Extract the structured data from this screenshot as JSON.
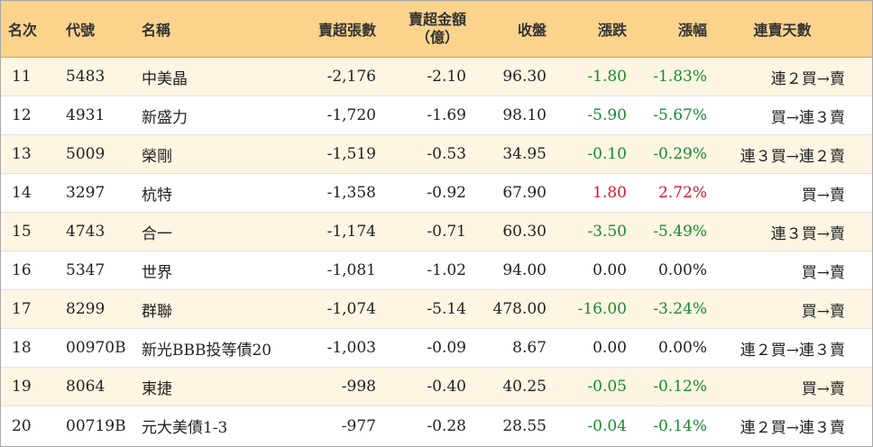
{
  "table": {
    "headers": {
      "rank": "名次",
      "code": "代號",
      "name": "名稱",
      "sell_lots": "賣超張數",
      "sell_amount_line1": "賣超金額",
      "sell_amount_line2": "（億）",
      "close": "收盤",
      "change": "漲跌",
      "change_pct": "漲幅",
      "streak": "連賣天數"
    },
    "rows": [
      {
        "rank": "11",
        "code": "5483",
        "name": "中美晶",
        "sell_lots": "-2,176",
        "sell_amount": "-2.10",
        "close": "96.30",
        "change": "-1.80",
        "change_pct": "-1.83%",
        "streak": "連２買→賣"
      },
      {
        "rank": "12",
        "code": "4931",
        "name": "新盛力",
        "sell_lots": "-1,720",
        "sell_amount": "-1.69",
        "close": "98.10",
        "change": "-5.90",
        "change_pct": "-5.67%",
        "streak": "買→連３賣"
      },
      {
        "rank": "13",
        "code": "5009",
        "name": "榮剛",
        "sell_lots": "-1,519",
        "sell_amount": "-0.53",
        "close": "34.95",
        "change": "-0.10",
        "change_pct": "-0.29%",
        "streak": "連３買→連２賣"
      },
      {
        "rank": "14",
        "code": "3297",
        "name": "杭特",
        "sell_lots": "-1,358",
        "sell_amount": "-0.92",
        "close": "67.90",
        "change": "1.80",
        "change_pct": "2.72%",
        "streak": "買→賣"
      },
      {
        "rank": "15",
        "code": "4743",
        "name": "合一",
        "sell_lots": "-1,174",
        "sell_amount": "-0.71",
        "close": "60.30",
        "change": "-3.50",
        "change_pct": "-5.49%",
        "streak": "連３買→賣"
      },
      {
        "rank": "16",
        "code": "5347",
        "name": "世界",
        "sell_lots": "-1,081",
        "sell_amount": "-1.02",
        "close": "94.00",
        "change": "0.00",
        "change_pct": "0.00%",
        "streak": "買→賣"
      },
      {
        "rank": "17",
        "code": "8299",
        "name": "群聯",
        "sell_lots": "-1,074",
        "sell_amount": "-5.14",
        "close": "478.00",
        "change": "-16.00",
        "change_pct": "-3.24%",
        "streak": "買→賣"
      },
      {
        "rank": "18",
        "code": "00970B",
        "name": "新光BBB投等債20",
        "sell_lots": "-1,003",
        "sell_amount": "-0.09",
        "close": "8.67",
        "change": "0.00",
        "change_pct": "0.00%",
        "streak": "連２買→連３賣"
      },
      {
        "rank": "19",
        "code": "8064",
        "name": "東捷",
        "sell_lots": "-998",
        "sell_amount": "-0.40",
        "close": "40.25",
        "change": "-0.05",
        "change_pct": "-0.12%",
        "streak": "買→賣"
      },
      {
        "rank": "20",
        "code": "00719B",
        "name": "元大美債1-3",
        "sell_lots": "-977",
        "sell_amount": "-0.28",
        "close": "28.55",
        "change": "-0.04",
        "change_pct": "-0.14%",
        "streak": "連２買→連３賣"
      }
    ]
  },
  "colors": {
    "header_bg": "#fbd38d",
    "odd_row_bg": "#fef5e2",
    "up": "#e0132a",
    "down": "#178a2e"
  }
}
